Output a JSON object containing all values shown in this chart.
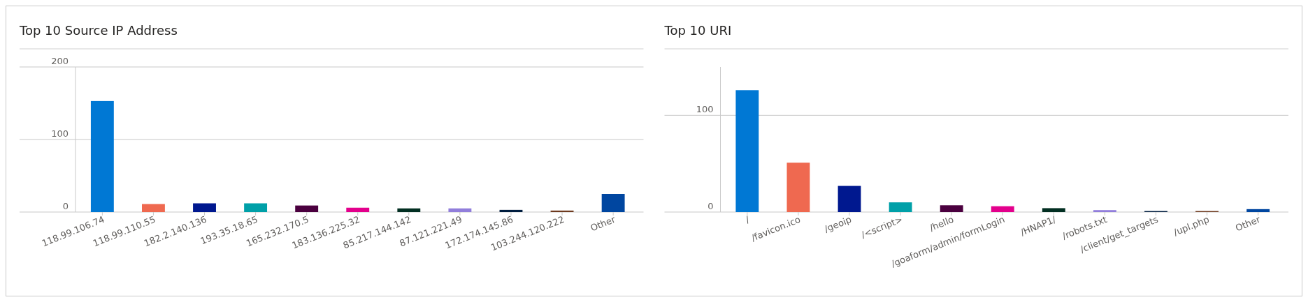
{
  "chart_data": [
    {
      "type": "bar",
      "title": "Top 10 Source IP Address",
      "categories": [
        "118.99.106.74",
        "118.99.110.55",
        "182.2.140.136",
        "193.35.18.65",
        "165.232.170.5",
        "183.136.225.32",
        "85.217.144.142",
        "87.121.221.49",
        "172.174.145.86",
        "103.244.120.222",
        "Other"
      ],
      "values": [
        153,
        11,
        12,
        12,
        9,
        6,
        5,
        5,
        3,
        2,
        25
      ],
      "colors": [
        "#0078d4",
        "#ef6950",
        "#00188f",
        "#00a0a8",
        "#4b003f",
        "#e3008c",
        "#022f22",
        "#917edb",
        "#001d3f",
        "#6e3a1f",
        "#0046a0"
      ],
      "ylim": [
        0,
        200
      ],
      "yticks": [
        0,
        100,
        200
      ],
      "grid": "y"
    },
    {
      "type": "bar",
      "title": "Top 10 URI",
      "categories": [
        "/",
        "/favicon.ico",
        "/geoip",
        "/<script>",
        "/hello",
        "/goaform/admin/formLogin",
        "/HNAP1/",
        "/robots.txt",
        "/client/get_targets",
        "/upl.php",
        "Other"
      ],
      "values": [
        126,
        51,
        27,
        10,
        7,
        6,
        4,
        2,
        1,
        1,
        3
      ],
      "colors": [
        "#0078d4",
        "#ef6950",
        "#00188f",
        "#00a0a8",
        "#4b003f",
        "#e3008c",
        "#022f22",
        "#917edb",
        "#001d3f",
        "#6e3a1f",
        "#0046a0"
      ],
      "ylim": [
        0,
        150
      ],
      "yticks": [
        0,
        100
      ],
      "grid": "y"
    }
  ]
}
